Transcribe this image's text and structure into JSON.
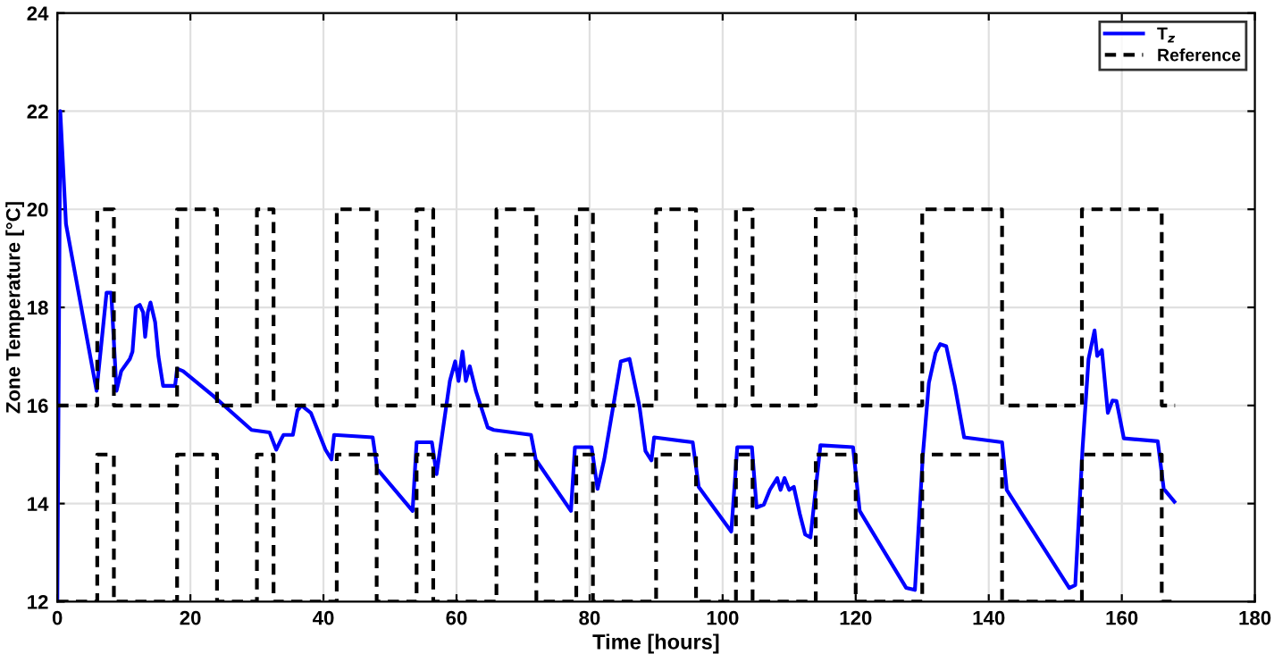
{
  "chart_data": {
    "type": "line",
    "xlabel": "Time [hours]",
    "ylabel": "Zone Temperature [°C]",
    "xlim": [
      0,
      180
    ],
    "xticks": [
      0,
      20,
      40,
      60,
      80,
      100,
      120,
      140,
      160,
      180
    ],
    "ylim": [
      12,
      24
    ],
    "yticks": [
      12,
      14,
      16,
      18,
      20,
      22,
      24
    ],
    "grid": true,
    "legend": "top right",
    "series": [
      {
        "name": "T$_{z}$",
        "color": "#0000ff",
        "line_style": "solid",
        "x": [
          0,
          0.44,
          1.3,
          5.9,
          7.4,
          8.1,
          8.9,
          9.6,
          10.9,
          11.3,
          11.8,
          12.4,
          12.9,
          13.2,
          13.6,
          14.0,
          14.7,
          15.2,
          15.9,
          17.7,
          18.0,
          18.9,
          23.4,
          29.2,
          31.9,
          32.9,
          33.6,
          34.0,
          35.4,
          36.1,
          36.7,
          38.1,
          40.3,
          41.2,
          41.6,
          47.4,
          48.1,
          53.4,
          54.0,
          56.3,
          57.0,
          59.0,
          59.8,
          60.3,
          60.9,
          61.4,
          62.0,
          62.9,
          64.7,
          65.6,
          71.2,
          71.9,
          77.2,
          77.8,
          80.3,
          81.2,
          82.2,
          84.7,
          86.0,
          87.5,
          88.4,
          89.3,
          89.7,
          95.5,
          96.4,
          101.3,
          102.2,
          104.4,
          105.1,
          106.2,
          107.1,
          108.2,
          108.7,
          109.3,
          110.0,
          110.7,
          111.6,
          112.4,
          113.2,
          114.7,
          119.6,
          120.6,
          127.6,
          128.9,
          130.1,
          131.0,
          132.0,
          132.7,
          133.6,
          134.9,
          136.3,
          142.0,
          142.7,
          152.1,
          153.0,
          154.1,
          155.0,
          155.9,
          156.3,
          157.0,
          157.9,
          158.6,
          159.2,
          160.3,
          165.4,
          166.3,
          167.9
        ],
        "values": [
          12,
          22.0,
          19.7,
          16.3,
          18.3,
          18.3,
          16.3,
          16.7,
          16.95,
          17.1,
          18.0,
          18.05,
          17.9,
          17.4,
          17.9,
          18.1,
          17.7,
          17.0,
          16.4,
          16.4,
          16.75,
          16.7,
          16.2,
          15.5,
          15.45,
          15.1,
          15.3,
          15.4,
          15.4,
          15.9,
          16.0,
          15.85,
          15.1,
          14.9,
          15.4,
          15.35,
          14.7,
          13.85,
          15.25,
          15.25,
          14.6,
          16.5,
          16.9,
          16.5,
          17.1,
          16.5,
          16.8,
          16.3,
          15.55,
          15.5,
          15.4,
          14.9,
          13.85,
          15.15,
          15.15,
          14.3,
          14.9,
          16.9,
          16.95,
          15.98,
          15.07,
          14.88,
          15.35,
          15.25,
          14.34,
          13.43,
          15.15,
          15.15,
          13.92,
          13.98,
          14.28,
          14.52,
          14.28,
          14.52,
          14.28,
          14.34,
          13.79,
          13.37,
          13.31,
          15.19,
          15.15,
          13.85,
          12.28,
          12.24,
          15.0,
          16.46,
          17.07,
          17.25,
          17.21,
          16.4,
          15.35,
          15.25,
          14.28,
          12.28,
          12.34,
          15.13,
          16.95,
          17.53,
          17.01,
          17.13,
          15.85,
          16.1,
          16.09,
          15.33,
          15.27,
          14.3,
          14.04
        ]
      },
      {
        "name": "Reference",
        "type": "step",
        "color": "#000000",
        "line_style": "dashed",
        "x": [
          0,
          6,
          8.5,
          18,
          24,
          30,
          32.5,
          42,
          48,
          54,
          56.5,
          66,
          72,
          78,
          80.5,
          90,
          96,
          102,
          104.5,
          114,
          120,
          130,
          142,
          154,
          166,
          168
        ],
        "values": [
          16,
          20,
          16,
          20,
          16,
          20,
          16,
          20,
          16,
          20,
          16,
          20,
          16,
          20,
          16,
          20,
          16,
          20,
          16,
          20,
          16,
          20,
          16,
          20,
          16,
          16
        ]
      },
      {
        "type": "step",
        "color": "#000000",
        "line_style": "dashed",
        "x": [
          0,
          6,
          8.5,
          18,
          24,
          30,
          32.5,
          42,
          48,
          54,
          56.5,
          66,
          72,
          78,
          80.5,
          90,
          96,
          102,
          104.5,
          114,
          120,
          130,
          142,
          154,
          166,
          168
        ],
        "values": [
          12,
          15,
          12,
          15,
          12,
          15,
          12,
          15,
          12,
          15,
          12,
          15,
          12,
          15,
          12,
          15,
          12,
          15,
          12,
          15,
          12,
          15,
          12,
          15,
          12,
          12
        ]
      }
    ]
  }
}
